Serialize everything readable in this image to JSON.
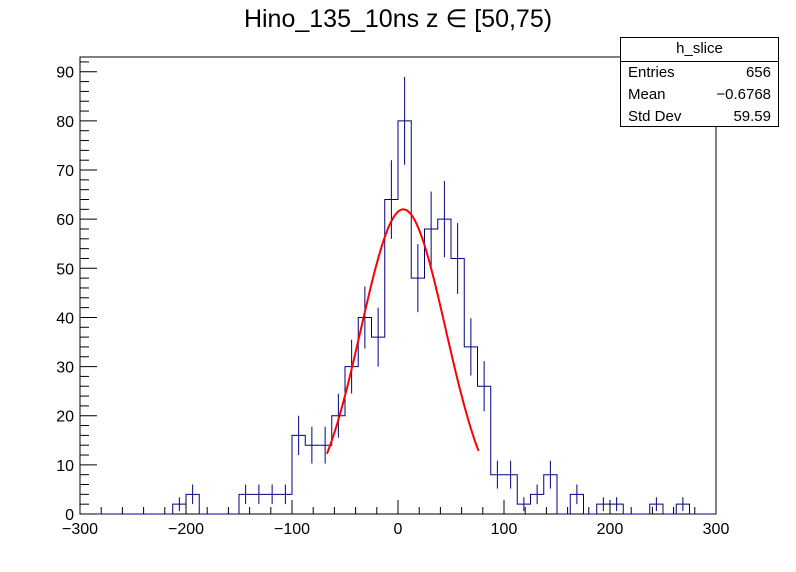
{
  "chart_data": {
    "type": "bar",
    "title": "Hino_135_10ns z  ∈ [50,75)",
    "xlim": [
      -300,
      300
    ],
    "ylim": [
      0,
      93
    ],
    "x_ticks": [
      -300,
      -200,
      -100,
      0,
      100,
      200,
      300
    ],
    "y_ticks": [
      0,
      10,
      20,
      30,
      40,
      50,
      60,
      70,
      80,
      90
    ],
    "x_tick_labels": [
      "−300",
      "−200",
      "−100",
      "0",
      "100",
      "200",
      "300"
    ],
    "bin_width": 12.5,
    "bins_low_edges": [
      -287.5,
      -275,
      -262.5,
      -250,
      -237.5,
      -225,
      -212.5,
      -200,
      -187.5,
      -175,
      -162.5,
      -150,
      -137.5,
      -125,
      -112.5,
      -100,
      -87.5,
      -75,
      -62.5,
      -50,
      -37.5,
      -25,
      -12.5,
      0,
      12.5,
      25,
      37.5,
      50,
      62.5,
      75,
      87.5,
      100,
      112.5,
      125,
      137.5,
      150,
      162.5,
      175,
      187.5,
      200,
      212.5,
      225,
      237.5,
      250,
      262.5,
      275,
      287.5
    ],
    "counts": [
      0,
      0,
      0,
      0,
      0,
      0,
      2,
      4,
      0,
      0,
      0,
      4,
      4,
      4,
      4,
      16,
      14,
      14,
      20,
      30,
      40,
      36,
      64,
      80,
      48,
      58,
      60,
      52,
      34,
      26,
      8,
      8,
      2,
      4,
      8,
      0,
      4,
      0,
      2,
      2,
      0,
      0,
      2,
      0,
      2,
      0,
      0
    ],
    "fit": {
      "type": "gaussian",
      "constant": 62,
      "mean": 5,
      "sigma": 40,
      "x_range": [
        -67,
        76
      ],
      "color": "#ff0000"
    },
    "hist_color": "#000080",
    "stats_box": {
      "name": "h_slice",
      "rows": [
        {
          "label": "Entries",
          "value": "656"
        },
        {
          "label": "Mean",
          "value": "−0.6768"
        },
        {
          "label": "Std Dev",
          "value": "59.59"
        }
      ]
    }
  }
}
